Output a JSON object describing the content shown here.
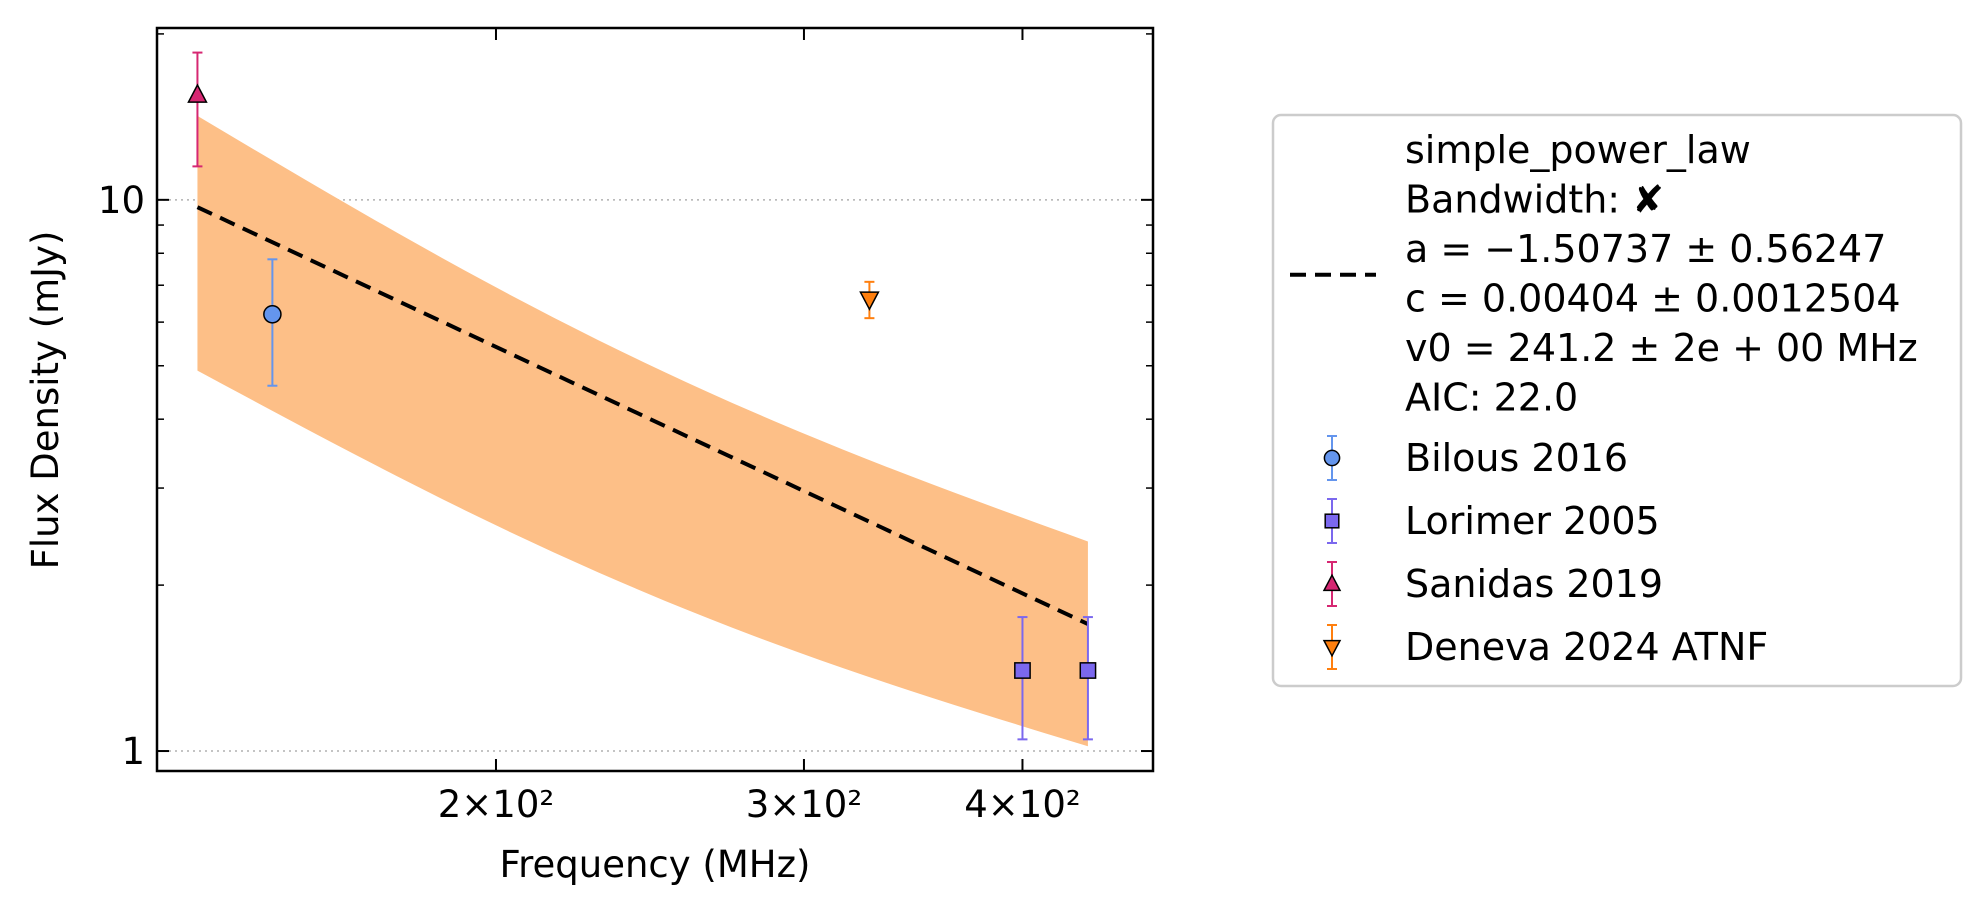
{
  "chart_data": {
    "type": "scatter",
    "xlabel": "Frequency (MHz)",
    "ylabel": "Flux Density (mJy)",
    "xscale": "log",
    "yscale": "log",
    "xlim": [
      128,
      475
    ],
    "ylim": [
      0.92,
      20.5
    ],
    "x_ticks": [
      {
        "value": 200,
        "label": "2×10²"
      },
      {
        "value": 300,
        "label": "3×10²"
      },
      {
        "value": 400,
        "label": "4×10²"
      }
    ],
    "y_ticks": [
      {
        "value": 1,
        "label": "1"
      },
      {
        "value": 10,
        "label": "10"
      }
    ],
    "grid": "y-major dotted",
    "series": [
      {
        "name": "Bilous 2016",
        "marker": "circle",
        "color": "#6495ed",
        "points": [
          {
            "x": 149,
            "y": 6.2,
            "yerr_low": 4.6,
            "yerr_high": 7.8
          }
        ]
      },
      {
        "name": "Lorimer 2005",
        "marker": "square",
        "color": "#7b68ee",
        "points": [
          {
            "x": 400,
            "y": 1.4,
            "yerr_low": 1.05,
            "yerr_high": 1.75
          },
          {
            "x": 436,
            "y": 1.4,
            "yerr_low": 1.05,
            "yerr_high": 1.75
          }
        ]
      },
      {
        "name": "Sanidas 2019",
        "marker": "triangle-up",
        "color": "#d62772",
        "points": [
          {
            "x": 135,
            "y": 15.5,
            "yerr_low": 11.5,
            "yerr_high": 18.5
          }
        ]
      },
      {
        "name": "Deneva 2024 ATNF",
        "marker": "triangle-down",
        "color": "#ff7f0e",
        "points": [
          {
            "x": 327,
            "y": 6.6,
            "yerr_low": 6.1,
            "yerr_high": 7.1
          }
        ]
      }
    ],
    "fit": {
      "model": "simple_power_law",
      "style": "dashed black",
      "v0": 241.2,
      "a": -1.50737,
      "x": [
        135,
        436
      ],
      "y": [
        9.7,
        1.7
      ],
      "band": {
        "color": "#fdbf87",
        "x": [
          135,
          436
        ],
        "y_low": [
          4.9,
          1.02
        ],
        "y_high": [
          14.2,
          2.4
        ]
      }
    },
    "legend": {
      "placement": "right",
      "fit_lines": [
        "simple_power_law",
        "Bandwidth: ✘",
        "a = −1.50737 ± 0.56247",
        "c = 0.00404 ± 0.0012504",
        "v0 = 241.2 ± 2e + 00 MHz",
        "AIC: 22.0"
      ]
    }
  }
}
